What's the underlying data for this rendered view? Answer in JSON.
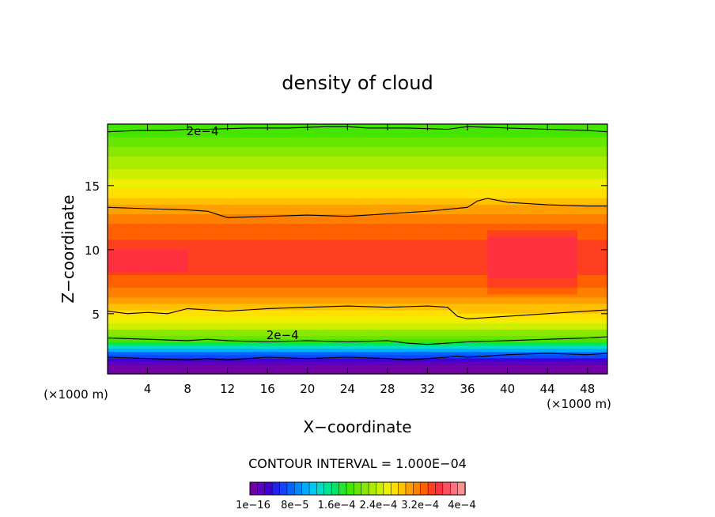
{
  "chart_data": {
    "type": "heatmap",
    "title": "density of cloud",
    "xlabel": "X−coordinate",
    "ylabel": "Z−coordinate",
    "x_unit": "(×1000 m)",
    "y_unit": "(×1000 m)",
    "xlim": [
      0,
      50
    ],
    "ylim": [
      0.3,
      19.8
    ],
    "x_ticks": [
      4,
      8,
      12,
      16,
      20,
      24,
      28,
      32,
      36,
      40,
      44,
      48
    ],
    "y_ticks": [
      5,
      10,
      15
    ],
    "contour_interval_text": "CONTOUR INTERVAL = 1.000E−04",
    "contour_label": "2e−4",
    "colorbar": {
      "labels": [
        "1e−16",
        "8e−5",
        "1.6e−4",
        "2.4e−4",
        "3.2e−4",
        "4e−4"
      ],
      "colors": [
        "#7000a8",
        "#5a00c0",
        "#3f00d6",
        "#2222ee",
        "#1144ff",
        "#0066ff",
        "#0088ff",
        "#00aaff",
        "#00c8f0",
        "#00dcc8",
        "#00e496",
        "#00e664",
        "#22e632",
        "#44e600",
        "#66e600",
        "#88e800",
        "#aaec00",
        "#ccf000",
        "#eef000",
        "#ffe000",
        "#ffc000",
        "#ffa000",
        "#ff8000",
        "#ff6000",
        "#ff4020",
        "#ff3040",
        "#ff5060",
        "#ff7080",
        "#ff9090"
      ]
    },
    "level_profile": {
      "z": [
        0.3,
        0.8,
        1.2,
        1.6,
        2.0,
        2.4,
        2.8,
        3.2,
        3.6,
        4.0,
        4.5,
        5.0,
        5.5,
        6.0,
        6.8,
        7.5,
        8.5,
        10.0,
        11.5,
        12.5,
        13.2,
        13.8,
        14.5,
        15.2,
        16.0,
        16.8,
        17.6,
        18.4,
        19.1,
        19.8
      ],
      "level": [
        0,
        0,
        1,
        3,
        6,
        9,
        12,
        14,
        15,
        17,
        18,
        19,
        20,
        21,
        22,
        23,
        24,
        24,
        23,
        22,
        21,
        20,
        19,
        18,
        17,
        16,
        15,
        14,
        13,
        13
      ]
    },
    "contour_lines": [
      {
        "x": [
          0,
          4,
          8,
          10,
          12,
          14,
          16,
          20,
          24,
          28,
          30,
          32,
          34,
          35,
          36,
          40,
          44,
          48,
          50
        ],
        "z": [
          1.6,
          1.5,
          1.4,
          1.5,
          1.4,
          1.5,
          1.6,
          1.5,
          1.6,
          1.5,
          1.4,
          1.5,
          1.6,
          1.7,
          1.6,
          1.8,
          1.9,
          1.8,
          1.9
        ]
      },
      {
        "x": [
          0,
          4,
          8,
          10,
          12,
          16,
          20,
          24,
          28,
          30,
          32,
          34,
          36,
          40,
          44,
          48,
          50
        ],
        "z": [
          3.1,
          3.0,
          2.9,
          3.0,
          2.9,
          2.8,
          2.9,
          2.8,
          2.9,
          2.7,
          2.6,
          2.7,
          2.8,
          2.9,
          3.0,
          3.1,
          3.2
        ]
      },
      {
        "x": [
          0,
          2,
          4,
          6,
          8,
          10,
          12,
          14,
          16,
          20,
          24,
          28,
          32,
          34,
          35,
          36,
          40,
          44,
          48,
          50
        ],
        "z": [
          5.2,
          5.0,
          5.1,
          5.0,
          5.4,
          5.3,
          5.2,
          5.3,
          5.4,
          5.5,
          5.6,
          5.5,
          5.6,
          5.5,
          4.8,
          4.6,
          4.8,
          5.0,
          5.2,
          5.3
        ]
      },
      {
        "x": [
          0,
          4,
          8,
          10,
          12,
          16,
          20,
          24,
          28,
          30,
          32,
          36,
          37,
          38,
          40,
          44,
          48,
          50
        ],
        "z": [
          13.3,
          13.2,
          13.1,
          13.0,
          12.5,
          12.6,
          12.7,
          12.6,
          12.8,
          12.9,
          13.0,
          13.3,
          13.8,
          14.0,
          13.7,
          13.5,
          13.4,
          13.4
        ]
      },
      {
        "x": [
          0,
          3,
          6,
          8,
          10,
          14,
          18,
          22,
          24,
          26,
          30,
          34,
          36,
          40,
          44,
          48,
          50
        ],
        "z": [
          19.2,
          19.3,
          19.3,
          19.4,
          19.4,
          19.5,
          19.5,
          19.6,
          19.6,
          19.5,
          19.5,
          19.4,
          19.6,
          19.5,
          19.4,
          19.3,
          19.2
        ]
      }
    ],
    "lower_left_contour_label_position": {
      "x": 17.5,
      "z": 3.4
    },
    "upper_contour_label_position": {
      "x": 9.5,
      "z": 19.3
    }
  }
}
